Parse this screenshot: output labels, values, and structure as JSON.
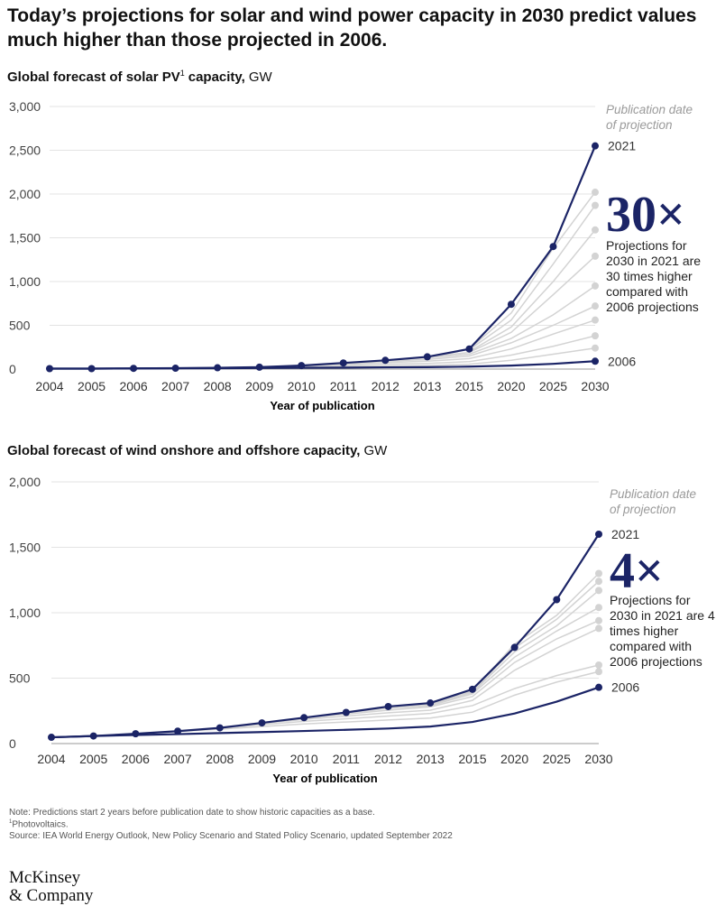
{
  "title": "Today’s projections for solar and wind power capacity in 2030 predict values much higher than those projected in 2006.",
  "chart_data": [
    {
      "type": "line",
      "title": "Global forecast of solar PV",
      "title_ref": "1",
      "title_end": "capacity,",
      "unit": "GW",
      "x_label": "Year of publication",
      "categories": [
        "2004",
        "2005",
        "2006",
        "2007",
        "2008",
        "2009",
        "2010",
        "2011",
        "2012",
        "2013",
        "2015",
        "2020",
        "2025",
        "2030"
      ],
      "ylim": [
        0,
        3000
      ],
      "yticks": [
        0,
        500,
        {
          "value": 1000,
          "label": "1,000"
        },
        {
          "value": 1500,
          "label": "1,500"
        },
        {
          "value": 2000,
          "label": "2,000"
        },
        {
          "value": 2500,
          "label": "2,500"
        },
        {
          "value": 3000,
          "label": "3,000"
        }
      ],
      "grid": true,
      "annotation_header": "Publication date of projection",
      "multiplier": "30×",
      "annotation": "Projections for 2030 in 2021 are 30 times higher compared with 2006 projections",
      "series": [
        {
          "color": "#d3d3d3",
          "markers": "last",
          "values": [
            null,
            null,
            null,
            null,
            null,
            null,
            null,
            null,
            null,
            140,
            230,
            640,
            1380,
            2020
          ]
        },
        {
          "color": "#d3d3d3",
          "markers": "last",
          "values": [
            null,
            null,
            null,
            null,
            null,
            null,
            null,
            null,
            null,
            null,
            220,
            560,
            1200,
            1870
          ]
        },
        {
          "color": "#d3d3d3",
          "markers": "last",
          "values": [
            null,
            null,
            null,
            null,
            null,
            null,
            null,
            null,
            null,
            null,
            200,
            480,
            1000,
            1590
          ]
        },
        {
          "color": "#d3d3d3",
          "markers": "last",
          "values": [
            null,
            null,
            null,
            null,
            null,
            null,
            null,
            null,
            null,
            140,
            190,
            420,
            850,
            1290
          ]
        },
        {
          "color": "#d3d3d3",
          "markers": "last",
          "values": [
            null,
            null,
            null,
            null,
            null,
            null,
            null,
            null,
            100,
            130,
            170,
            350,
            620,
            950
          ]
        },
        {
          "color": "#d3d3d3",
          "markers": "last",
          "values": [
            null,
            null,
            null,
            null,
            null,
            null,
            null,
            70,
            90,
            110,
            150,
            300,
            500,
            720
          ]
        },
        {
          "color": "#d3d3d3",
          "markers": "last",
          "values": [
            null,
            null,
            null,
            null,
            null,
            null,
            40,
            60,
            75,
            90,
            120,
            230,
            400,
            560
          ]
        },
        {
          "color": "#d3d3d3",
          "markers": "last",
          "values": [
            null,
            null,
            null,
            null,
            null,
            22,
            35,
            45,
            55,
            65,
            85,
            160,
            260,
            380
          ]
        },
        {
          "color": "#d3d3d3",
          "markers": "last",
          "values": [
            null,
            null,
            null,
            null,
            15,
            20,
            25,
            30,
            35,
            40,
            55,
            100,
            170,
            240
          ]
        },
        {
          "name": "2006",
          "color": "#1b2466",
          "markers": "last",
          "values": [
            5,
            5,
            7,
            9,
            10,
            12,
            15,
            17,
            20,
            22,
            28,
            40,
            60,
            90
          ]
        },
        {
          "name": "2021",
          "color": "#1b2466",
          "markers": "all",
          "values": [
            5,
            5,
            8,
            10,
            15,
            22,
            40,
            70,
            100,
            140,
            230,
            740,
            1400,
            2550
          ]
        }
      ]
    },
    {
      "type": "line",
      "title": "Global forecast of wind onshore and offshore capacity,",
      "unit": "GW",
      "x_label": "Year of publication",
      "categories": [
        "2004",
        "2005",
        "2006",
        "2007",
        "2008",
        "2009",
        "2010",
        "2011",
        "2012",
        "2013",
        "2015",
        "2020",
        "2025",
        "2030"
      ],
      "ylim": [
        0,
        2000
      ],
      "yticks": [
        0,
        500,
        {
          "value": 1000,
          "label": "1,000"
        },
        {
          "value": 1500,
          "label": "1,500"
        },
        {
          "value": 2000,
          "label": "2,000"
        }
      ],
      "grid": true,
      "annotation_header": "Publication date of projection",
      "multiplier": "4×",
      "annotation": "Projections for 2030 in 2021 are 4 times higher compared with 2006 projections",
      "series": [
        {
          "color": "#d3d3d3",
          "markers": "last",
          "values": [
            null,
            null,
            null,
            null,
            null,
            null,
            null,
            null,
            null,
            310,
            400,
            760,
            980,
            1300
          ]
        },
        {
          "color": "#d3d3d3",
          "markers": "last",
          "values": [
            null,
            null,
            null,
            null,
            null,
            null,
            null,
            null,
            null,
            300,
            395,
            730,
            950,
            1240
          ]
        },
        {
          "color": "#d3d3d3",
          "markers": "last",
          "values": [
            null,
            null,
            null,
            null,
            null,
            null,
            null,
            null,
            280,
            300,
            390,
            700,
            900,
            1170
          ]
        },
        {
          "color": "#d3d3d3",
          "markers": "last",
          "values": [
            null,
            null,
            null,
            null,
            null,
            null,
            null,
            235,
            270,
            290,
            380,
            660,
            860,
            1040
          ]
        },
        {
          "color": "#d3d3d3",
          "markers": "last",
          "values": [
            null,
            null,
            null,
            null,
            null,
            null,
            195,
            225,
            255,
            280,
            360,
            620,
            800,
            940
          ]
        },
        {
          "color": "#d3d3d3",
          "markers": "last",
          "values": [
            null,
            null,
            null,
            null,
            null,
            155,
            185,
            210,
            235,
            255,
            330,
            560,
            730,
            880
          ]
        },
        {
          "color": "#d3d3d3",
          "markers": "last",
          "values": [
            null,
            null,
            null,
            null,
            118,
            145,
            170,
            190,
            210,
            230,
            290,
            420,
            520,
            600
          ]
        },
        {
          "color": "#d3d3d3",
          "markers": "last",
          "values": [
            null,
            null,
            null,
            93,
            110,
            130,
            150,
            165,
            180,
            195,
            240,
            370,
            470,
            550
          ]
        },
        {
          "name": "2006",
          "color": "#1b2466",
          "markers": "last",
          "values": [
            48,
            58,
            65,
            72,
            80,
            88,
            96,
            105,
            115,
            130,
            165,
            230,
            320,
            430
          ]
        },
        {
          "name": "2021",
          "color": "#1b2466",
          "markers": "all",
          "values": [
            48,
            58,
            75,
            95,
            120,
            158,
            198,
            238,
            283,
            310,
            415,
            735,
            1100,
            1600
          ]
        }
      ]
    }
  ],
  "notes": [
    "Note: Predictions start 2 years before publication date to show historic capacities as a base."
  ],
  "footnote": {
    "ref": "1",
    "text": "Photovoltaics."
  },
  "source": "Source: IEA World Energy Outlook, New Policy Scenario and Stated Policy Scenario, updated September 2022",
  "logo": [
    "McKinsey",
    "& Company"
  ]
}
